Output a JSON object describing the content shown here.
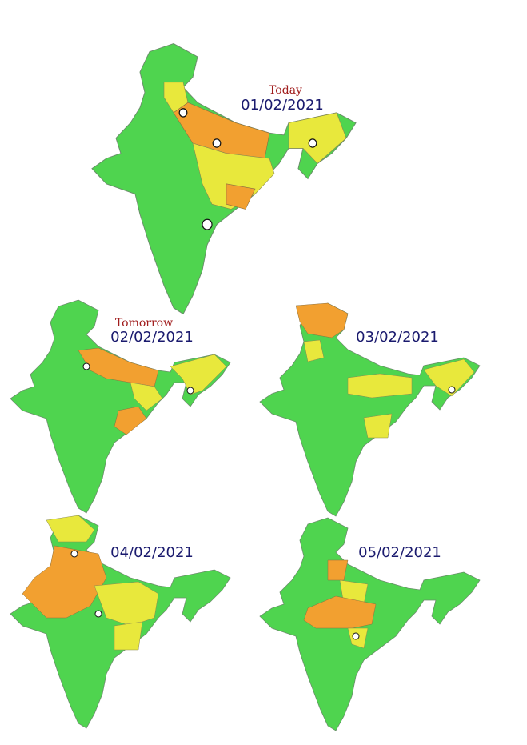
{
  "maps": [
    {
      "label": "Today",
      "date": "01/02/2021"
    },
    {
      "label": "Tomorrow",
      "date": "02/02/2021"
    },
    {
      "date": "03/02/2021"
    },
    {
      "date": "04/02/2021"
    },
    {
      "date": "05/02/2021"
    }
  ]
}
